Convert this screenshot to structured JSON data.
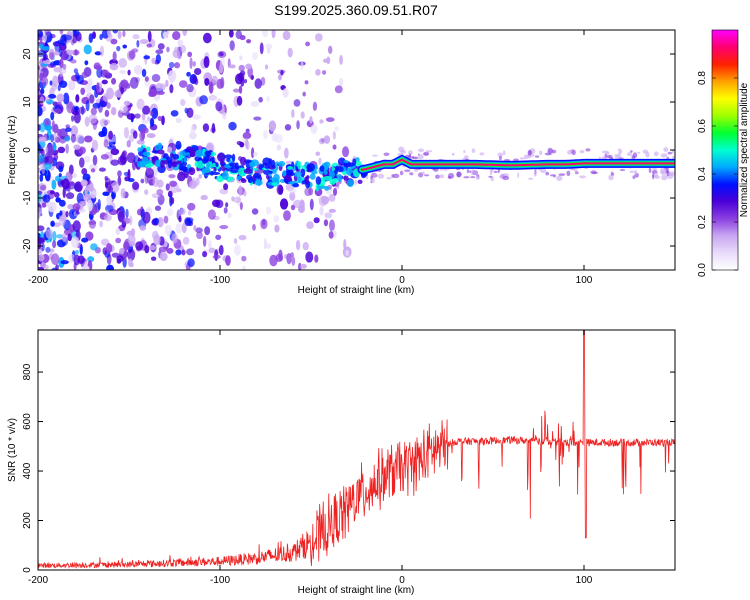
{
  "figure": {
    "title": "S199.2025.360.09.51.R07"
  },
  "chart_data": [
    {
      "type": "heatmap",
      "name": "spectrogram",
      "xlabel": "Height of straight line (km)",
      "ylabel": "Frequency (Hz)",
      "xlim": [
        -200,
        150
      ],
      "ylim": [
        -25,
        25
      ],
      "xticks": [
        -200,
        -100,
        0,
        100
      ],
      "yticks": [
        -20,
        -10,
        0,
        10,
        20
      ],
      "colorbar": {
        "label": "Normalized spectral amplitude",
        "range": [
          0,
          1
        ],
        "ticks": [
          0.0,
          0.2,
          0.4,
          0.6,
          0.8
        ],
        "colormap": [
          "#ffffff",
          "#e8dcfa",
          "#c9a6f2",
          "#8a3fe0",
          "#4a00d8",
          "#0010ff",
          "#00aaff",
          "#00ffd0",
          "#00ff30",
          "#a0ff00",
          "#ffff00",
          "#ffa000",
          "#ff2000",
          "#ff0070",
          "#ff00ff"
        ]
      },
      "ridge": {
        "description": "main frequency ridge (Hz) vs height (km)",
        "x": [
          -145,
          -130,
          -120,
          -110,
          -100,
          -90,
          -80,
          -70,
          -60,
          -50,
          -40,
          -30,
          -20,
          -10,
          -5,
          0,
          5,
          10,
          20,
          40,
          60,
          80,
          90,
          100,
          110,
          130,
          150
        ],
        "y": [
          -1.5,
          -1.5,
          -1.5,
          -2.5,
          -3.5,
          -4,
          -4.5,
          -5,
          -5,
          -5.5,
          -5.5,
          -4.5,
          -4,
          -3,
          -3,
          -2,
          -3,
          -3,
          -3,
          -3,
          -3.2,
          -3,
          -3,
          -2.8,
          -2.8,
          -2.8,
          -2.8
        ]
      },
      "noise": {
        "x_range": [
          -200,
          -30
        ],
        "y_range": [
          -25,
          25
        ]
      }
    },
    {
      "type": "line",
      "name": "snr",
      "xlabel": "Height of straight line (km)",
      "ylabel": "SNR (10 * v/v)",
      "xlim": [
        -200,
        150
      ],
      "ylim": [
        0,
        970
      ],
      "xticks": [
        -200,
        -100,
        0,
        100
      ],
      "yticks": [
        0,
        200,
        400,
        600,
        800
      ],
      "color": "#ee2222",
      "trend": {
        "x": [
          -200,
          -150,
          -100,
          -80,
          -60,
          -45,
          -35,
          -25,
          -15,
          -5,
          5,
          15,
          22,
          30,
          40,
          60,
          80,
          100,
          120,
          150
        ],
        "y": [
          18,
          22,
          35,
          48,
          70,
          140,
          210,
          290,
          350,
          400,
          425,
          470,
          500,
          520,
          520,
          525,
          520,
          515,
          515,
          515
        ]
      },
      "peak": {
        "x": 100,
        "y": 970
      },
      "dip": {
        "x": 101,
        "y": 130
      }
    }
  ]
}
